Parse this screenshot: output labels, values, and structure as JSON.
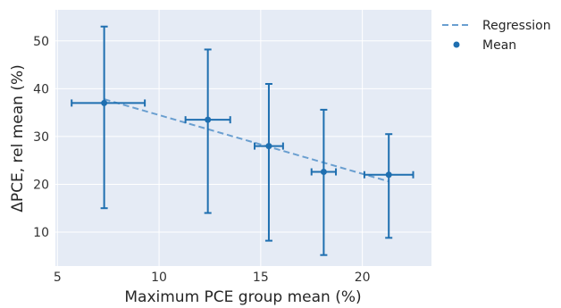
{
  "chart_data": {
    "type": "scatter",
    "title": "",
    "xlabel": "Maximum PCE group mean (%)",
    "ylabel": "ΔPCE, rel mean (%)",
    "xlim": [
      4.9,
      23.4
    ],
    "ylim": [
      2.9,
      56.5
    ],
    "xticks": [
      5,
      10,
      15,
      20
    ],
    "yticks": [
      10,
      20,
      30,
      40,
      50
    ],
    "grid": true,
    "legend_position": "outside-top-right",
    "colors": {
      "series": "#1f6fb0",
      "regression": "#6a9fd0",
      "plot_bg": "#e5ebf5",
      "grid": "#ffffff"
    },
    "series": [
      {
        "name": "Mean",
        "points": [
          {
            "x": 7.3,
            "y": 37.0,
            "xerr": [
              1.6,
              2.0
            ],
            "yerr": [
              22.0,
              16.0
            ]
          },
          {
            "x": 12.4,
            "y": 33.5,
            "xerr": [
              1.1,
              1.1
            ],
            "yerr": [
              19.5,
              14.7
            ]
          },
          {
            "x": 15.4,
            "y": 28.0,
            "xerr": [
              0.7,
              0.7
            ],
            "yerr": [
              19.8,
              13.0
            ]
          },
          {
            "x": 18.1,
            "y": 22.6,
            "xerr": [
              0.6,
              0.6
            ],
            "yerr": [
              17.4,
              13.0
            ]
          },
          {
            "x": 21.3,
            "y": 22.0,
            "xerr": [
              1.2,
              1.2
            ],
            "yerr": [
              13.2,
              8.5
            ]
          }
        ]
      },
      {
        "name": "Regression",
        "line": {
          "x": [
            7.3,
            21.3
          ],
          "y": [
            37.8,
            20.6
          ]
        }
      }
    ]
  }
}
